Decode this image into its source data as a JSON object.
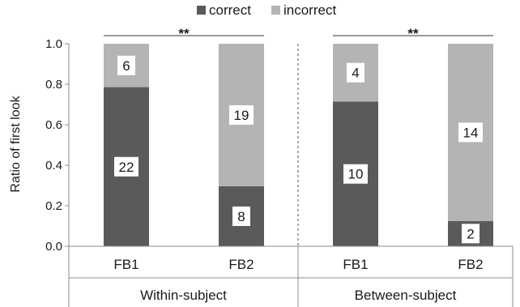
{
  "chart_data": {
    "type": "bar",
    "stacked": true,
    "normalized": true,
    "ylabel": "Ratio of first look",
    "ylim": [
      0,
      1.0
    ],
    "yticks": [
      "0.0",
      "0.2",
      "0.4",
      "0.6",
      "0.8",
      "1.0"
    ],
    "grid": false,
    "legend_position": "top",
    "groups": [
      {
        "label": "Within-subject",
        "significance": "**",
        "bars": [
          {
            "category": "FB1",
            "correct": 22,
            "incorrect": 6
          },
          {
            "category": "FB2",
            "correct": 8,
            "incorrect": 19
          }
        ]
      },
      {
        "label": "Between-subject",
        "significance": "**",
        "bars": [
          {
            "category": "FB1",
            "correct": 10,
            "incorrect": 4
          },
          {
            "category": "FB2",
            "correct": 2,
            "incorrect": 14
          }
        ]
      }
    ],
    "series": [
      {
        "name": "correct",
        "color": "#5a5a5a"
      },
      {
        "name": "incorrect",
        "color": "#b4b4b4"
      }
    ]
  }
}
